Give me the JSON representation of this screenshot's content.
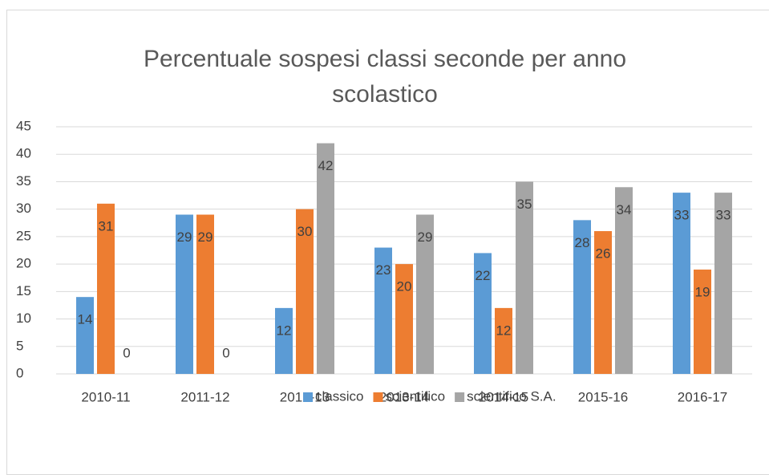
{
  "chart_data": {
    "type": "bar",
    "title": "Percentuale sospesi classi seconde per anno scolastico",
    "categories": [
      "2010-11",
      "2011-12",
      "2012-13",
      "2013-14",
      "2014-15",
      "2015-16",
      "2016-17"
    ],
    "series": [
      {
        "name": "classico",
        "color": "#5b9bd5",
        "values": [
          14,
          29,
          12,
          23,
          22,
          28,
          33
        ]
      },
      {
        "name": "scientifico",
        "color": "#ed7d31",
        "values": [
          31,
          29,
          30,
          20,
          12,
          26,
          19
        ]
      },
      {
        "name": "scientifico S.A.",
        "color": "#a5a5a5",
        "values": [
          0,
          0,
          42,
          29,
          35,
          34,
          33
        ]
      }
    ],
    "ylim": [
      0,
      45
    ],
    "yticks": [
      0,
      5,
      10,
      15,
      20,
      25,
      30,
      35,
      40,
      45
    ],
    "grid": true,
    "legend": "bottom"
  }
}
